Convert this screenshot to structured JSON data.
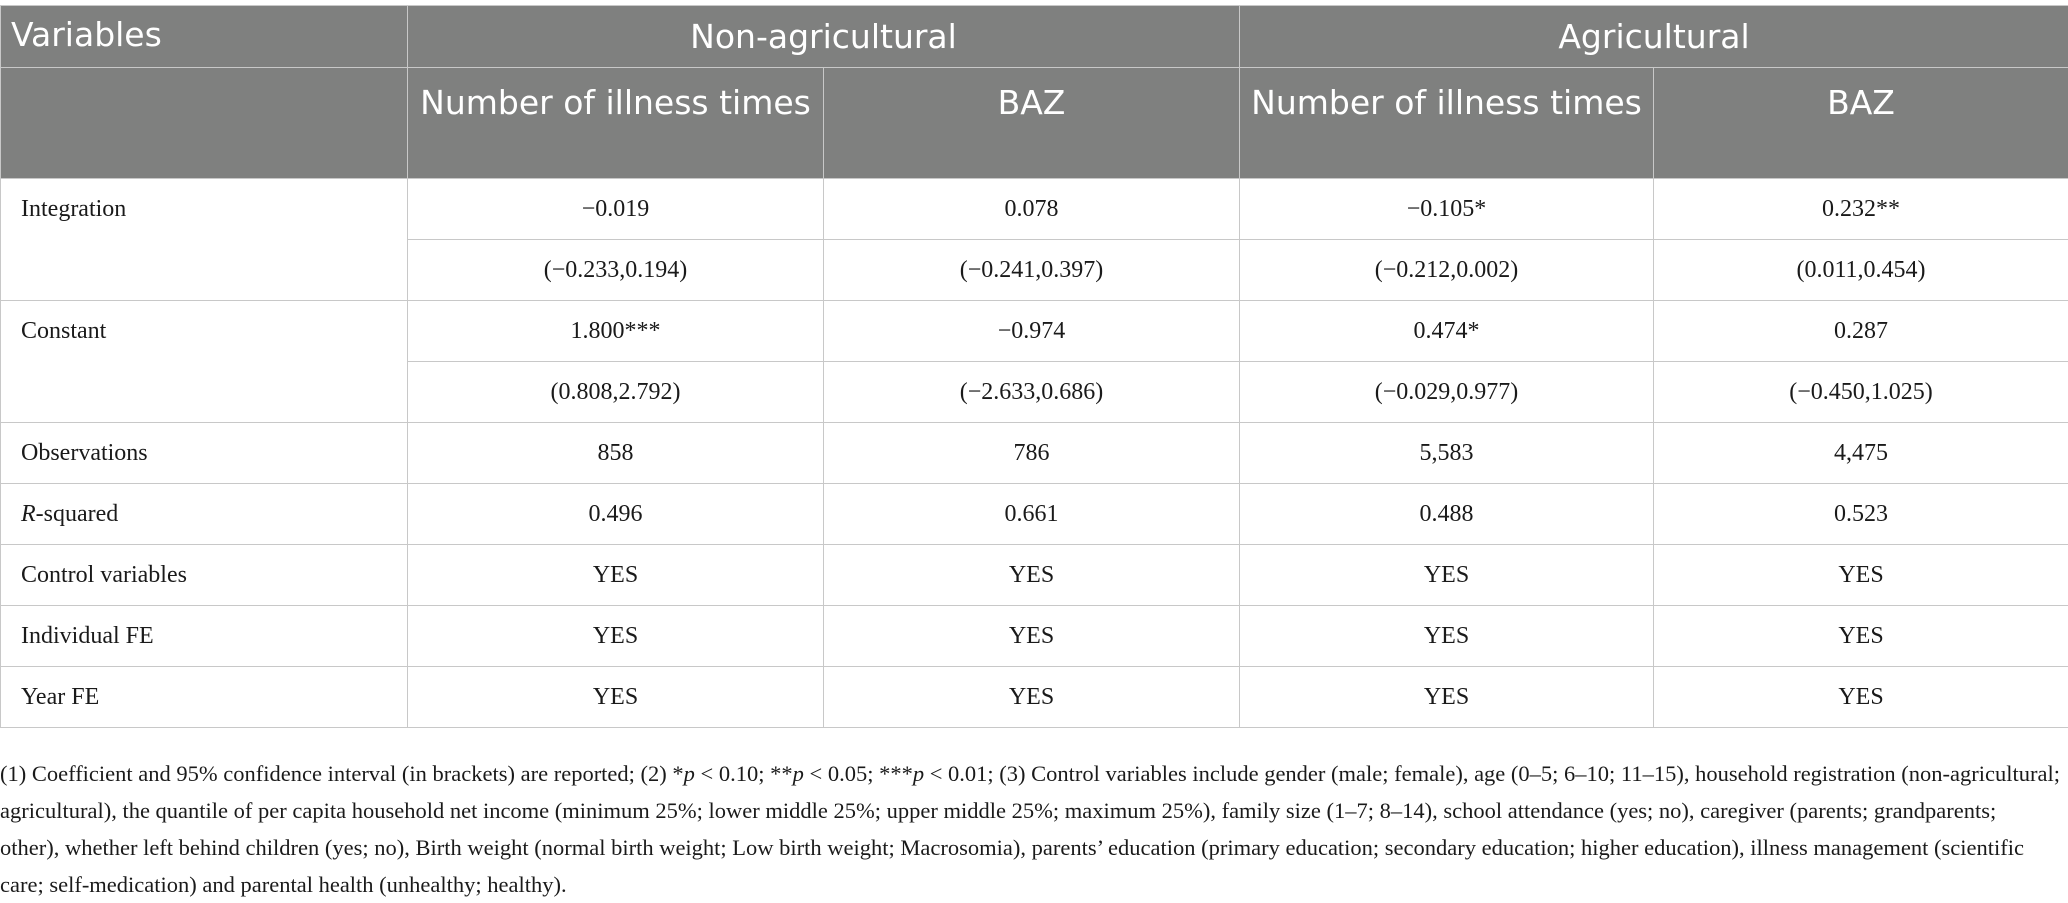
{
  "table": {
    "header": {
      "variables": "Variables",
      "groups": [
        "Non-agricultural",
        "Agricultural"
      ],
      "subheaders": [
        "Number of illness times",
        "BAZ",
        "Number of illness times",
        "BAZ"
      ]
    },
    "rows": {
      "integration": {
        "label": "Integration",
        "coef": [
          "−0.019",
          "0.078",
          "−0.105*",
          "0.232**"
        ],
        "ci": [
          "(−0.233,0.194)",
          "(−0.241,0.397)",
          "(−0.212,0.002)",
          "(0.011,0.454)"
        ]
      },
      "constant": {
        "label": "Constant",
        "coef": [
          "1.800***",
          "−0.974",
          "0.474*",
          "0.287"
        ],
        "ci": [
          "(0.808,2.792)",
          "(−2.633,0.686)",
          "(−0.029,0.977)",
          "(−0.450,1.025)"
        ]
      },
      "observations": {
        "label": "Observations",
        "values": [
          "858",
          "786",
          "5,583",
          "4,475"
        ]
      },
      "r_squared": {
        "label_italic": "R",
        "label_rest": "-squared",
        "values": [
          "0.496",
          "0.661",
          "0.488",
          "0.523"
        ]
      },
      "controls": {
        "label": "Control variables",
        "values": [
          "YES",
          "YES",
          "YES",
          "YES"
        ]
      },
      "individual_fe": {
        "label": "Individual FE",
        "values": [
          "YES",
          "YES",
          "YES",
          "YES"
        ]
      },
      "year_fe": {
        "label": "Year FE",
        "values": [
          "YES",
          "YES",
          "YES",
          "YES"
        ]
      }
    }
  },
  "note": {
    "part1": "(1) Coefficient and 95% confidence interval (in brackets) are reported; (2) *",
    "p1": "p",
    "part2": " < 0.10; **",
    "p2": "p",
    "part3": " < 0.05; ***",
    "p3": "p",
    "part4": " < 0.01; (3) Control variables include gender (male; female), age (0–5; 6–10; 11–15), household registration (non-agricultural; agricultural), the quantile of per capita household net income (minimum 25%; lower middle 25%; upper middle 25%; maximum 25%), family size (1–7; 8–14), school attendance (yes; no), caregiver (parents; grandparents; other), whether left behind children (yes; no), Birth weight (normal birth weight; Low birth weight; Macrosomia), parents’ education (primary education; secondary education; higher education), illness management (scientific care; self-medication) and parental health (unhealthy; healthy)."
  }
}
